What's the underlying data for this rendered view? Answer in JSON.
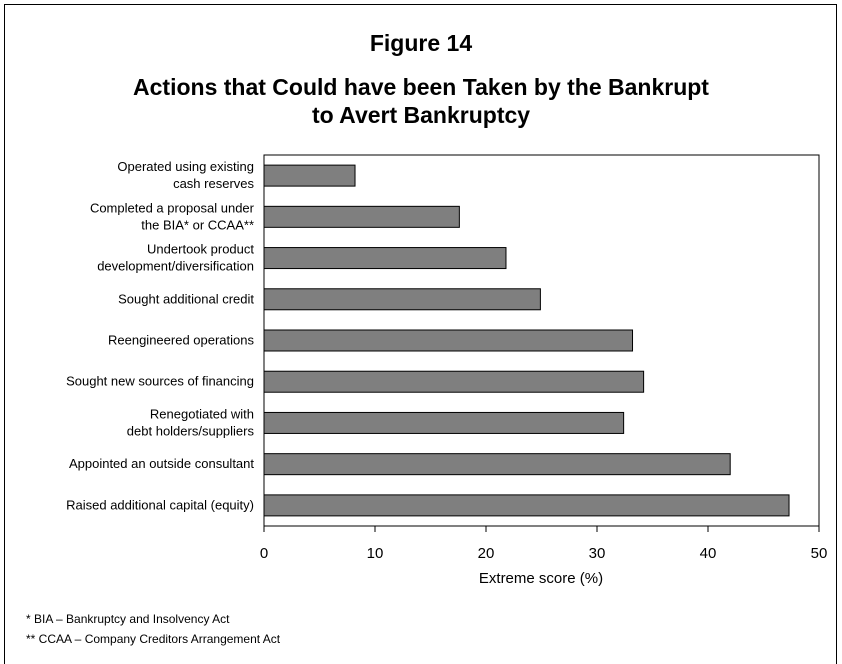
{
  "figure_number": "Figure 14",
  "title_line1": "Actions that Could have been Taken by the Bankrupt",
  "title_line2": "to Avert Bankruptcy",
  "chart_data": {
    "type": "bar",
    "orientation": "horizontal",
    "categories": [
      [
        "Operated using existing",
        "cash reserves"
      ],
      [
        "Completed a proposal under",
        "the BIA* or CCAA**"
      ],
      [
        "Undertook product",
        "development/diversification"
      ],
      [
        "Sought additional credit"
      ],
      [
        "Reengineered operations"
      ],
      [
        "Sought new sources of financing"
      ],
      [
        "Renegotiated with",
        "debt holders/suppliers"
      ],
      [
        "Appointed an outside consultant"
      ],
      [
        "Raised additional capital (equity)"
      ]
    ],
    "values": [
      8.2,
      17.6,
      21.8,
      24.9,
      33.2,
      34.2,
      32.4,
      42.0,
      47.3
    ],
    "xlabel": "Extreme score (%)",
    "ylabel": "",
    "xlim": [
      0,
      50
    ],
    "xticks": [
      0,
      10,
      20,
      30,
      40,
      50
    ],
    "bar_color": "#7f7f7f",
    "grid": false
  },
  "footnotes": [
    "*  BIA – Bankruptcy and Insolvency Act",
    "** CCAA – Company Creditors Arrangement Act"
  ]
}
